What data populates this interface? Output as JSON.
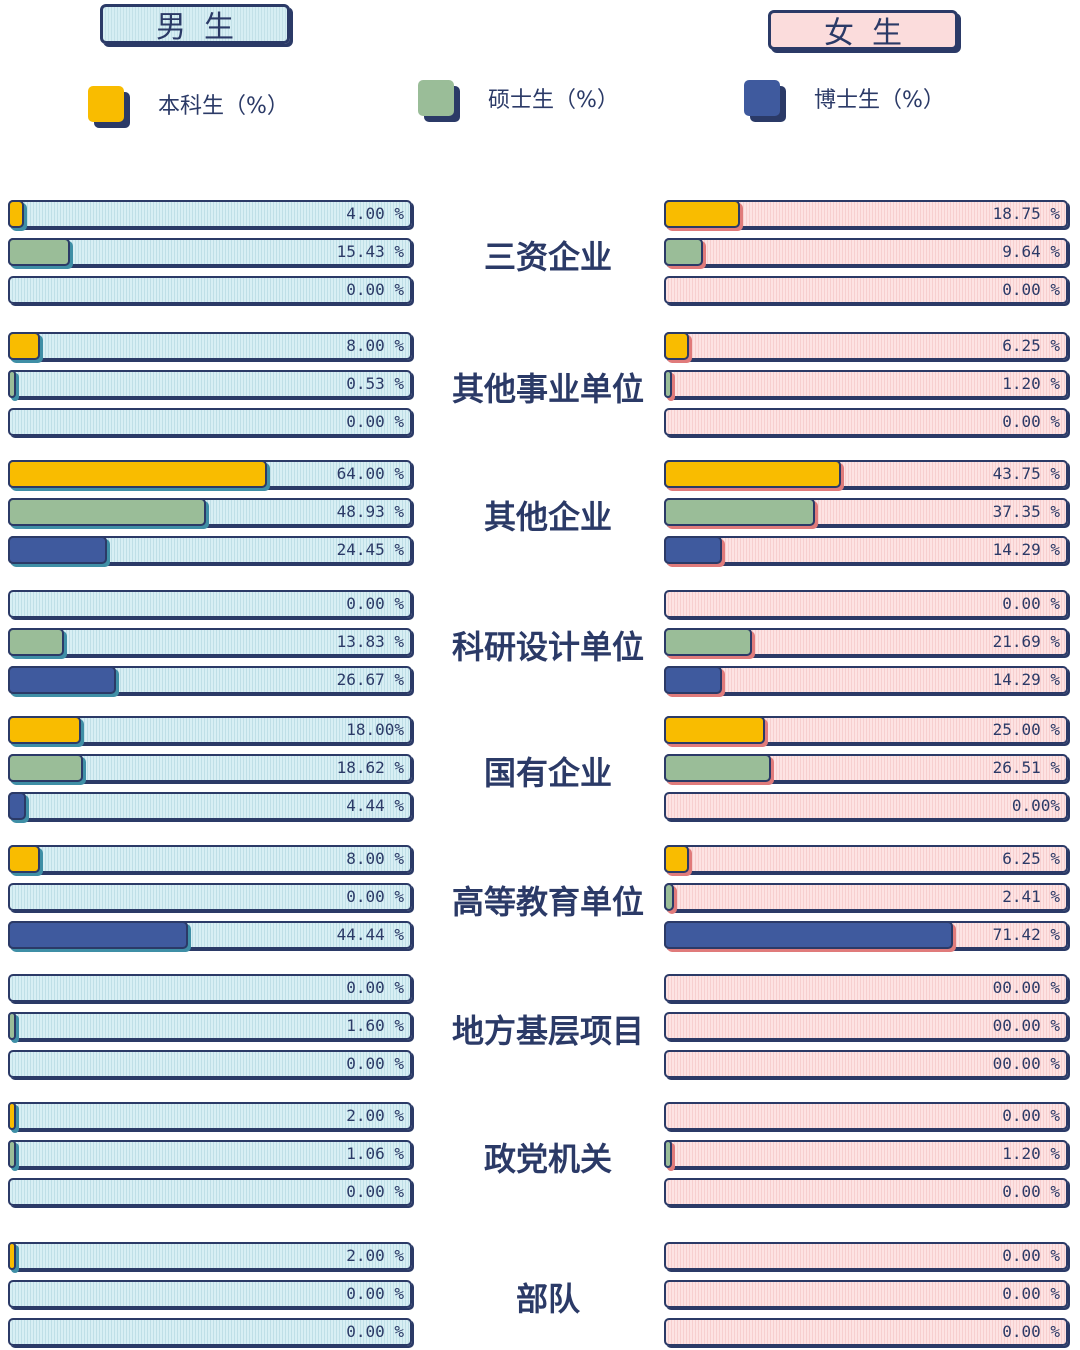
{
  "header": {
    "male": "男生",
    "female": "女生"
  },
  "legend": [
    {
      "label": "本科生（%）",
      "color": "#F9BC00"
    },
    {
      "label": "硕士生（%）",
      "color": "#9ABD98"
    },
    {
      "label": "博士生（%）",
      "color": "#3F5A9E"
    }
  ],
  "chart_data": {
    "type": "bar",
    "categories": [
      "三资企业",
      "其他事业单位",
      "其他企业",
      "科研设计单位",
      "国有企业",
      "高等教育单位",
      "地方基层项目",
      "政党机关",
      "部队"
    ],
    "xlim": [
      0,
      100
    ],
    "groups": [
      {
        "name": "男生",
        "series": [
          {
            "name": "本科生（%）",
            "values": [
              4.0,
              8.0,
              64.0,
              0.0,
              18.0,
              8.0,
              0.0,
              2.0,
              2.0
            ],
            "labels": [
              "4.00 %",
              "8.00 %",
              "64.00 %",
              "0.00 %",
              "18.00%",
              "8.00 %",
              "0.00 %",
              "2.00 %",
              "2.00 %"
            ]
          },
          {
            "name": "硕士生（%）",
            "values": [
              15.43,
              0.53,
              48.93,
              13.83,
              18.62,
              0.0,
              1.6,
              1.06,
              0.0
            ],
            "labels": [
              "15.43 %",
              "0.53 %",
              "48.93 %",
              "13.83 %",
              "18.62 %",
              "0.00 %",
              "1.60 %",
              "1.06 %",
              "0.00 %"
            ]
          },
          {
            "name": "博士生（%）",
            "values": [
              0.0,
              0.0,
              24.45,
              26.67,
              4.44,
              44.44,
              0.0,
              0.0,
              0.0
            ],
            "labels": [
              "0.00 %",
              "0.00 %",
              "24.45 %",
              "26.67 %",
              "4.44 %",
              "44.44 %",
              "0.00 %",
              "0.00 %",
              "0.00 %"
            ]
          }
        ]
      },
      {
        "name": "女生",
        "series": [
          {
            "name": "本科生（%）",
            "values": [
              18.75,
              6.25,
              43.75,
              0.0,
              25.0,
              6.25,
              0.0,
              0.0,
              0.0
            ],
            "labels": [
              "18.75 %",
              "6.25 %",
              "43.75 %",
              "0.00 %",
              "25.00 %",
              "6.25 %",
              "00.00 %",
              "0.00 %",
              "0.00 %"
            ]
          },
          {
            "name": "硕士生（%）",
            "values": [
              9.64,
              1.2,
              37.35,
              21.69,
              26.51,
              2.41,
              0.0,
              1.2,
              0.0
            ],
            "labels": [
              "9.64 %",
              "1.20 %",
              "37.35 %",
              "21.69 %",
              "26.51 %",
              "2.41 %",
              "00.00 %",
              "1.20 %",
              "0.00 %"
            ]
          },
          {
            "name": "博士生（%）",
            "values": [
              0.0,
              0.0,
              14.29,
              14.29,
              0.0,
              71.42,
              0.0,
              0.0,
              0.0
            ],
            "labels": [
              "0.00 %",
              "0.00 %",
              "14.29 %",
              "14.29 %",
              "0.00%",
              "71.42 %",
              "00.00 %",
              "0.00 %",
              "0.00 %"
            ]
          }
        ]
      }
    ]
  }
}
